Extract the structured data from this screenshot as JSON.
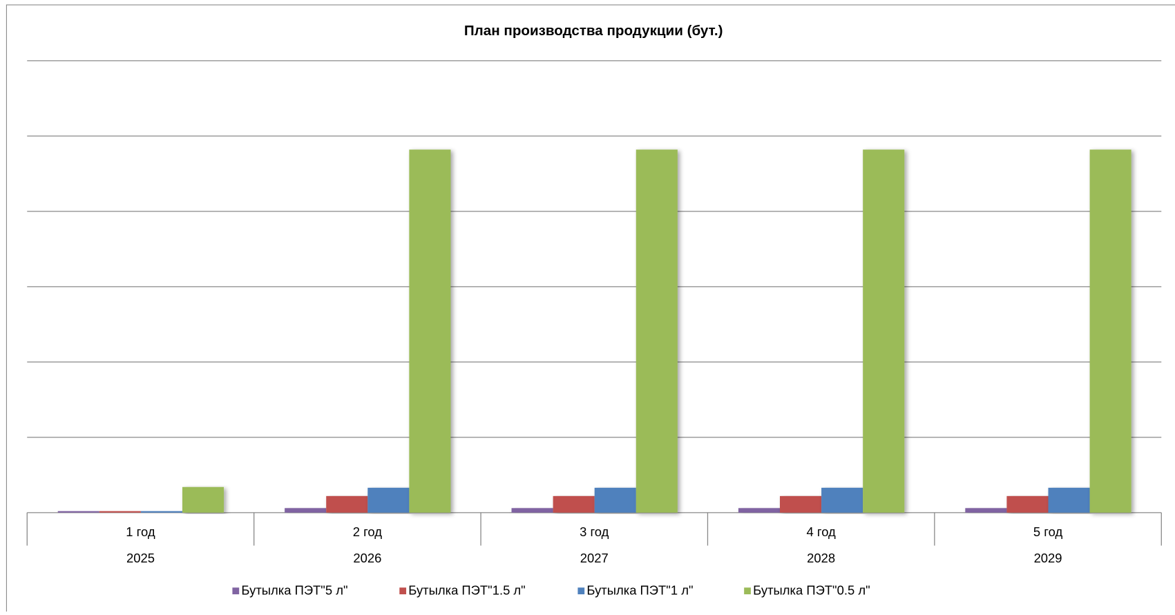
{
  "chart_data": {
    "type": "bar",
    "title": "План производства продукции (бут.)",
    "categories": [
      "1 год",
      "2 год",
      "3 год",
      "4 год",
      "5 год"
    ],
    "years": [
      "2025",
      "2026",
      "2027",
      "2028",
      "2029"
    ],
    "series": [
      {
        "name": "Бутылка ПЭТ\"5 л\"",
        "color": "#8064a2",
        "values": [
          0.02,
          0.06,
          0.06,
          0.06,
          0.06
        ]
      },
      {
        "name": "Бутылка ПЭТ\"1.5 л\"",
        "color": "#c0504d",
        "values": [
          0.02,
          0.22,
          0.22,
          0.22,
          0.22
        ]
      },
      {
        "name": "Бутылка ПЭТ\"1 л\"",
        "color": "#4f81bd",
        "values": [
          0.02,
          0.33,
          0.33,
          0.33,
          0.33
        ]
      },
      {
        "name": "Бутылка ПЭТ\"0.5 л\"",
        "color": "#9bbb59",
        "values": [
          0.34,
          4.82,
          4.82,
          4.82,
          4.82
        ]
      }
    ],
    "ylim": [
      0,
      6
    ],
    "yticks": [
      0,
      1,
      2,
      3,
      4,
      5,
      6
    ],
    "grid": true,
    "legend": "bottom"
  }
}
